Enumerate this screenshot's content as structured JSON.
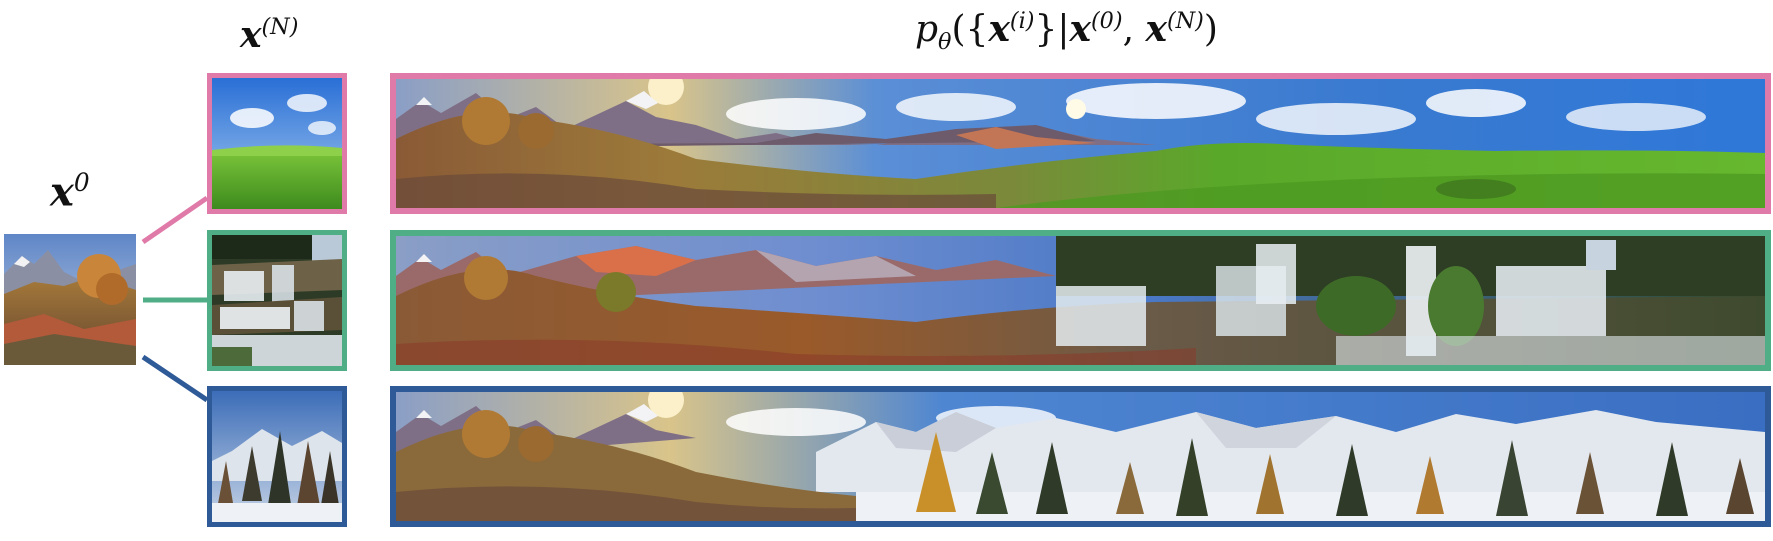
{
  "labels": {
    "x0_symbol": "x",
    "x0_sup": "0",
    "xN_symbol": "x",
    "xN_sup": "(N)",
    "formula_p": "p",
    "formula_theta": "θ",
    "formula_open": "({",
    "formula_xi": "x",
    "formula_i_sup": "(i)",
    "formula_mid": "}|",
    "formula_x0": "x",
    "formula_x0_sup": "(0)",
    "formula_comma": ", ",
    "formula_xN": "x",
    "formula_xN_sup": "(N)",
    "formula_close": ")"
  },
  "colors": {
    "pink": "#e07aa8",
    "green": "#4fae86",
    "blue": "#2f5a98"
  },
  "rows": [
    {
      "theme": "grass-meadow",
      "border": "pink"
    },
    {
      "theme": "waterfall",
      "border": "green"
    },
    {
      "theme": "snowy-forest",
      "border": "blue"
    }
  ]
}
